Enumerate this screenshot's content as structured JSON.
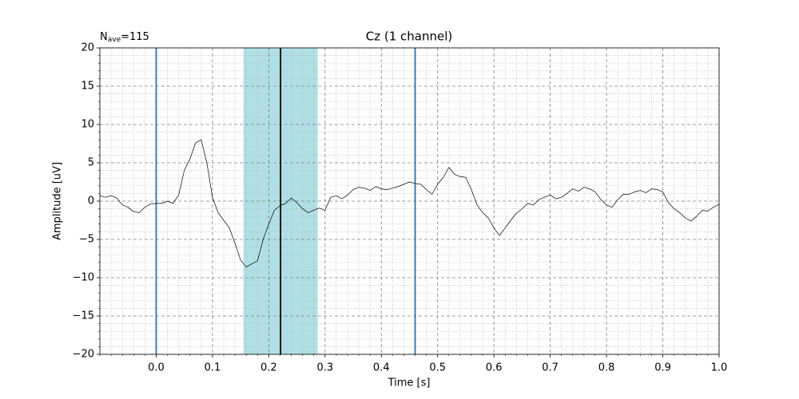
{
  "chart_data": {
    "type": "line",
    "title": "Cz (1 channel)",
    "annotation": {
      "symbol": "N",
      "subscript": "ave",
      "text": "=115"
    },
    "xlabel": "Time [s]",
    "ylabel": "Amplitude [uV]",
    "x": [
      -0.1,
      -0.09,
      -0.08,
      -0.07,
      -0.06,
      -0.05,
      -0.04,
      -0.03,
      -0.02,
      -0.01,
      0,
      0.01,
      0.02,
      0.03,
      0.04,
      0.05,
      0.06,
      0.07,
      0.08,
      0.09,
      0.1,
      0.11,
      0.12,
      0.13,
      0.14,
      0.15,
      0.16,
      0.17,
      0.18,
      0.19,
      0.2,
      0.21,
      0.22,
      0.23,
      0.24,
      0.25,
      0.26,
      0.27,
      0.28,
      0.29,
      0.3,
      0.31,
      0.32,
      0.33,
      0.34,
      0.35,
      0.36,
      0.37,
      0.38,
      0.39,
      0.4,
      0.41,
      0.42,
      0.43,
      0.44,
      0.45,
      0.46,
      0.47,
      0.48,
      0.49,
      0.5,
      0.51,
      0.52,
      0.53,
      0.54,
      0.55,
      0.56,
      0.57,
      0.58,
      0.59,
      0.6,
      0.61,
      0.62,
      0.63,
      0.64,
      0.65,
      0.66,
      0.67,
      0.68,
      0.69,
      0.7,
      0.71,
      0.72,
      0.73,
      0.74,
      0.75,
      0.76,
      0.77,
      0.78,
      0.79,
      0.8,
      0.81,
      0.82,
      0.83,
      0.84,
      0.85,
      0.86,
      0.87,
      0.88,
      0.89,
      0.9,
      0.91,
      0.92,
      0.93,
      0.94,
      0.95,
      0.96,
      0.97,
      0.98,
      0.99,
      1.0
    ],
    "values": [
      0.7,
      0.5,
      0.7,
      0.4,
      -0.5,
      -0.8,
      -1.4,
      -1.5,
      -0.8,
      -0.4,
      -0.3,
      -0.3,
      0.0,
      -0.3,
      0.8,
      4.0,
      5.5,
      7.6,
      8.0,
      5.0,
      0.5,
      -1.5,
      -2.5,
      -3.5,
      -5.5,
      -7.7,
      -8.6,
      -8.2,
      -7.8,
      -5.0,
      -3.0,
      -1.2,
      -0.6,
      -0.3,
      0.4,
      -0.2,
      -1.0,
      -1.5,
      -1.2,
      -0.9,
      -1.2,
      0.5,
      0.7,
      0.3,
      0.8,
      1.5,
      1.8,
      1.7,
      1.4,
      1.9,
      1.6,
      1.5,
      1.7,
      1.9,
      2.2,
      2.5,
      2.3,
      2.2,
      1.5,
      0.9,
      2.2,
      3.1,
      4.4,
      3.5,
      3.2,
      3.1,
      1.5,
      -0.5,
      -1.5,
      -2.2,
      -3.5,
      -4.5,
      -3.5,
      -2.5,
      -1.6,
      -1.0,
      -0.3,
      -0.5,
      0.2,
      0.5,
      0.8,
      0.3,
      0.5,
      1.0,
      1.6,
      1.3,
      1.8,
      1.6,
      1.2,
      0.2,
      -0.5,
      -0.8,
      0.2,
      0.9,
      0.9,
      1.2,
      1.4,
      1.1,
      1.6,
      1.5,
      1.2,
      -0.2,
      -1.0,
      -1.5,
      -2.2,
      -2.6,
      -2.0,
      -1.2,
      -1.3,
      -0.8,
      -0.4
    ],
    "color": "#000000",
    "xlim": [
      -0.1,
      1.0
    ],
    "ylim": [
      -20,
      20
    ],
    "xticks": [
      {
        "value": 0,
        "label": "0.0"
      },
      0.1,
      0.2,
      0.3,
      0.4,
      0.5,
      0.6,
      0.7,
      0.8,
      0.9,
      {
        "value": 1,
        "label": "1.0"
      }
    ],
    "yticks": [
      {
        "value": -20,
        "label": "−20"
      },
      {
        "value": -15,
        "label": "−15"
      },
      {
        "value": -10,
        "label": "−10"
      },
      {
        "value": -5,
        "label": "−5"
      },
      0,
      5,
      10,
      15,
      20
    ],
    "xminorticks": [
      -0.1,
      -0.08,
      -0.06,
      -0.04,
      -0.02,
      0.02,
      0.04,
      0.06,
      0.08,
      0.12,
      0.14,
      0.16,
      0.18,
      0.22,
      0.24,
      0.26,
      0.28,
      0.32,
      0.34,
      0.36,
      0.38,
      0.42,
      0.44,
      0.46,
      0.48,
      0.52,
      0.54,
      0.56,
      0.58,
      0.62,
      0.64,
      0.66,
      0.68,
      0.72,
      0.74,
      0.76,
      0.78,
      0.82,
      0.84,
      0.86,
      0.88,
      0.92,
      0.94,
      0.96,
      0.98
    ],
    "yminorticks": [
      -19,
      -18,
      -17,
      -16,
      -14,
      -13,
      -12,
      -11,
      -9,
      -8,
      -7,
      -6,
      -4,
      -3,
      -2,
      -1,
      1,
      2,
      3,
      4,
      6,
      7,
      8,
      9,
      11,
      12,
      13,
      14,
      16,
      17,
      18,
      19
    ],
    "grid": true,
    "vlines": [
      {
        "x": 0,
        "color": "#1f77b4"
      },
      {
        "x": 0.46,
        "color": "#1f77b4"
      },
      {
        "x": 0.221,
        "color": "#000000"
      }
    ],
    "span": {
      "xmin": 0.155,
      "xmax": 0.287,
      "color": "#b0e0e6"
    }
  }
}
